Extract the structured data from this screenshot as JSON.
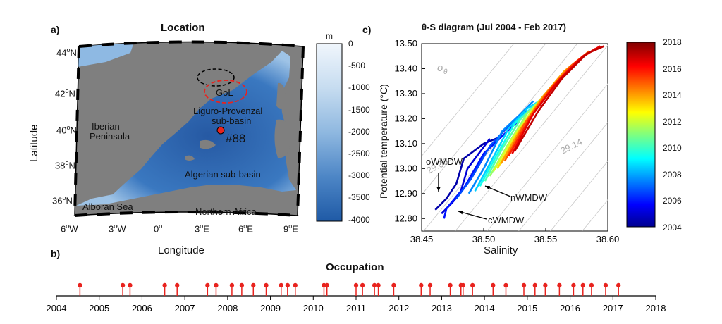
{
  "panel_a": {
    "letter": "a)",
    "title": "Location",
    "xlabel": "Longitude",
    "ylabel": "Latitude",
    "lon_ticks": [
      "6$W",
      "3$W",
      "0$",
      "3$E",
      "6$E",
      "9$E"
    ],
    "lat_ticks": [
      "44$N",
      "42$N",
      "40$N",
      "38$N",
      "36$N"
    ],
    "place_labels": {
      "gol": "GoL",
      "liguro": "Liguro-Provenzal",
      "sub": "sub-basin",
      "iberian": "Iberian",
      "peninsula": "Peninsula",
      "station": "#88",
      "algerian": "Algerian sub-basin",
      "alboran": "Alboran Sea",
      "africa": "Northern Africa"
    },
    "depth_colorbar": {
      "unit": "m",
      "ticks": [
        "0",
        "-500",
        "-1000",
        "-1500",
        "-2000",
        "-2500",
        "-3000",
        "-3500",
        "-4000"
      ],
      "colors": {
        "shallow": "#eaf2fb",
        "deep": "#1f5aa6"
      }
    },
    "colors": {
      "land": "#7f7f7f",
      "sea": "#2e6db5",
      "station": "#e8231e",
      "gol_ring": "#e8231e"
    }
  },
  "panel_b": {
    "letter": "b)",
    "title": "Occupation",
    "marker_color": "#e8231e"
  },
  "panel_c": {
    "letter": "c)",
    "title": "θ-S diagram (Jul 2004 - Feb 2017)",
    "sigma_label": "σ",
    "sigma_sub": "θ",
    "isopycnal_labels": [
      "29.06",
      "29.14"
    ],
    "water_masses": [
      "oWMDW",
      "nWMDW",
      "cWMDW"
    ],
    "time_colorbar_ticks": [
      "2018",
      "2016",
      "2014",
      "2012",
      "2010",
      "2008",
      "2006",
      "2004"
    ]
  },
  "chart_data": [
    {
      "type": "scatter",
      "title": "Occupation",
      "xlabel": "",
      "ylabel": "",
      "xlim": [
        2004,
        2018
      ],
      "x_ticks": [
        2004,
        2005,
        2006,
        2007,
        2008,
        2009,
        2010,
        2011,
        2012,
        2013,
        2014,
        2015,
        2016,
        2017,
        2018
      ],
      "values": [
        2004.55,
        2005.55,
        2005.72,
        2006.53,
        2006.82,
        2007.53,
        2007.73,
        2008.1,
        2008.33,
        2008.6,
        2008.9,
        2009.25,
        2009.4,
        2009.58,
        2010.25,
        2010.32,
        2011.0,
        2011.15,
        2011.43,
        2011.52,
        2011.88,
        2012.52,
        2012.73,
        2013.2,
        2013.45,
        2013.5,
        2013.72,
        2014.2,
        2014.5,
        2014.92,
        2015.18,
        2015.42,
        2015.75,
        2016.08,
        2016.3,
        2016.5,
        2016.83,
        2017.13
      ],
      "grid": false
    },
    {
      "type": "line",
      "title": "θ-S diagram (Jul 2004 - Feb 2017)",
      "xlabel": "Salinity",
      "ylabel": "Potential temperature (°C)",
      "xlim": [
        38.45,
        38.6
      ],
      "ylim": [
        12.75,
        13.5
      ],
      "x_ticks": [
        "38.45",
        "38.50",
        "38.55",
        "38.60"
      ],
      "y_ticks": [
        "12.80",
        "12.90",
        "13.00",
        "13.10",
        "13.20",
        "13.30",
        "13.40",
        "13.50"
      ],
      "color_scale": {
        "label_min": 2004,
        "label_max": 2018,
        "colormap": "jet"
      },
      "series": [
        {
          "year": 2004.6,
          "s": [
            38.461,
            38.47,
            38.478,
            38.484,
            38.5,
            38.515
          ],
          "t": [
            12.835,
            12.88,
            12.94,
            13.04,
            13.1,
            13.13
          ]
        },
        {
          "year": 2005.2,
          "s": [
            38.466,
            38.474,
            38.481,
            38.487,
            38.505
          ],
          "t": [
            12.82,
            12.86,
            12.9,
            13.0,
            13.12
          ]
        },
        {
          "year": 2006.0,
          "s": [
            38.468,
            38.47,
            38.485,
            38.5,
            38.515,
            38.53
          ],
          "t": [
            12.8,
            12.84,
            12.93,
            13.06,
            13.13,
            13.2
          ]
        },
        {
          "year": 2006.8,
          "s": [
            38.478,
            38.49,
            38.505,
            38.52,
            38.535
          ],
          "t": [
            12.88,
            12.96,
            13.09,
            13.17,
            13.23
          ]
        },
        {
          "year": 2007.6,
          "s": [
            38.488,
            38.5,
            38.515,
            38.53,
            38.54
          ],
          "t": [
            12.9,
            13.0,
            13.15,
            13.22,
            13.27
          ]
        },
        {
          "year": 2008.6,
          "s": [
            38.493,
            38.505,
            38.52,
            38.535,
            38.548
          ],
          "t": [
            12.91,
            13.02,
            13.16,
            13.24,
            13.28
          ]
        },
        {
          "year": 2009.5,
          "s": [
            38.497,
            38.51,
            38.525,
            38.54,
            38.552
          ],
          "t": [
            12.93,
            13.05,
            13.18,
            13.25,
            13.3
          ]
        },
        {
          "year": 2010.4,
          "s": [
            38.501,
            38.515,
            38.53,
            38.545,
            38.555
          ],
          "t": [
            12.95,
            13.08,
            13.2,
            13.27,
            13.32
          ]
        },
        {
          "year": 2011.3,
          "s": [
            38.505,
            38.52,
            38.535,
            38.55,
            38.562
          ],
          "t": [
            12.97,
            13.1,
            13.22,
            13.3,
            13.36
          ]
        },
        {
          "year": 2012.2,
          "s": [
            38.508,
            38.523,
            38.54,
            38.555,
            38.57
          ],
          "t": [
            12.99,
            13.12,
            13.24,
            13.33,
            13.4
          ]
        },
        {
          "year": 2013.2,
          "s": [
            38.511,
            38.527,
            38.545,
            38.56,
            38.575
          ],
          "t": [
            13.0,
            13.14,
            13.27,
            13.36,
            13.42
          ]
        },
        {
          "year": 2014.1,
          "s": [
            38.514,
            38.53,
            38.548,
            38.565,
            38.58
          ],
          "t": [
            13.02,
            13.16,
            13.29,
            13.39,
            13.45
          ]
        },
        {
          "year": 2015.0,
          "s": [
            38.517,
            38.533,
            38.552,
            38.57,
            38.585
          ],
          "t": [
            13.03,
            13.18,
            13.31,
            13.41,
            13.47
          ]
        },
        {
          "year": 2015.8,
          "s": [
            38.52,
            38.537,
            38.556,
            38.575,
            38.59
          ],
          "t": [
            13.05,
            13.2,
            13.33,
            13.43,
            13.48
          ]
        },
        {
          "year": 2016.6,
          "s": [
            38.523,
            38.54,
            38.56,
            38.58,
            38.594
          ],
          "t": [
            13.06,
            13.22,
            13.35,
            13.45,
            13.49
          ]
        },
        {
          "year": 2017.1,
          "s": [
            38.525,
            38.544,
            38.563,
            38.583,
            38.597
          ],
          "t": [
            13.07,
            13.23,
            13.36,
            13.46,
            13.49
          ]
        }
      ]
    }
  ]
}
